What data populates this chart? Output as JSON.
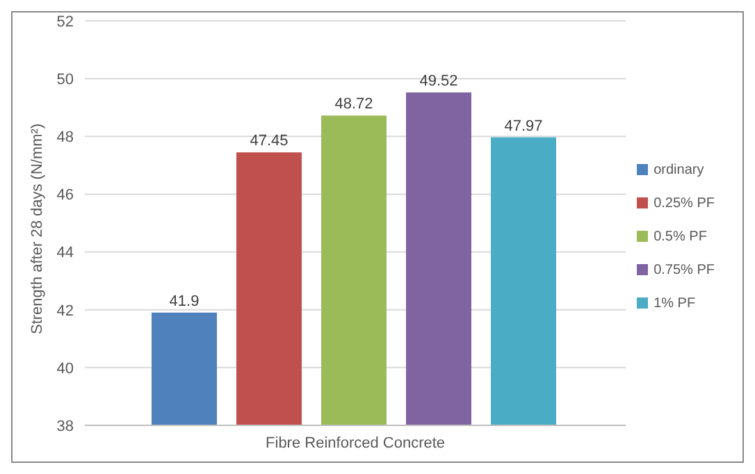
{
  "chart_data": {
    "type": "bar",
    "ylabel": "Strength after 28 days  (N/mm²)",
    "categories": [
      "Fibre Reinforced Concrete"
    ],
    "series": [
      {
        "name": "ordinary",
        "color": "#4f81bd",
        "values": [
          41.9
        ]
      },
      {
        "name": "0.25% PF",
        "color": "#c0504d",
        "values": [
          47.45
        ]
      },
      {
        "name": "0.5% PF",
        "color": "#9bbb59",
        "values": [
          48.72
        ]
      },
      {
        "name": "0.75% PF",
        "color": "#8064a2",
        "values": [
          49.52
        ]
      },
      {
        "name": "1% PF",
        "color": "#4bacc6",
        "values": [
          47.97
        ]
      }
    ],
    "ylim": [
      38,
      52
    ],
    "yticks": [
      38,
      40,
      42,
      44,
      46,
      48,
      50,
      52
    ],
    "grid": "y",
    "legend": "right",
    "data_labels": true
  }
}
